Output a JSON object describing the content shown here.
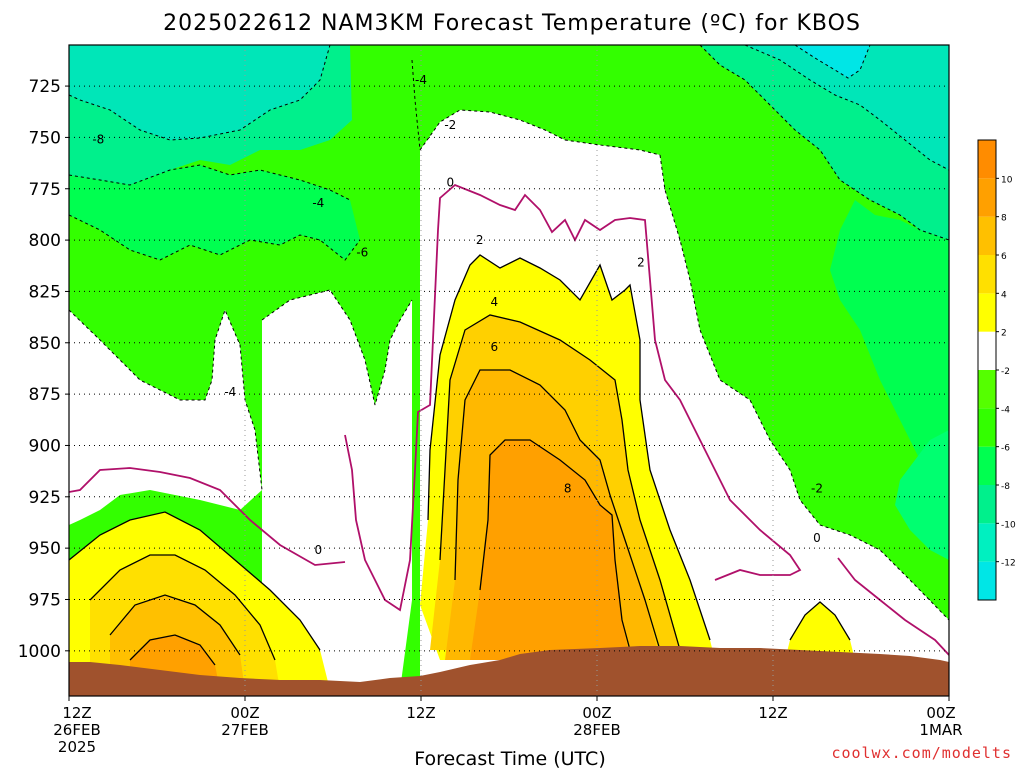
{
  "chart_data": {
    "type": "contour",
    "title": "2025022612 NAM3KM Forecast Temperature (ºC) for KBOS",
    "xlabel": "Forecast Time (UTC)",
    "ylabel": "",
    "y_axis_scale": "inverted",
    "y_ticks": [
      725,
      750,
      775,
      800,
      825,
      850,
      875,
      900,
      925,
      950,
      975,
      1000
    ],
    "x_ticks": [
      {
        "hour": 0,
        "lines": [
          "12Z",
          "26FEB",
          "2025"
        ]
      },
      {
        "hour": 12,
        "lines": [
          "00Z",
          "27FEB"
        ]
      },
      {
        "hour": 24,
        "lines": [
          "12Z"
        ]
      },
      {
        "hour": 36,
        "lines": [
          "00Z",
          "28FEB"
        ]
      },
      {
        "hour": 48,
        "lines": [
          "12Z"
        ]
      },
      {
        "hour": 60,
        "lines": [
          "00Z",
          "1MAR"
        ]
      }
    ],
    "x_range_hours": [
      0,
      60
    ],
    "y_range_hpa": [
      705,
      1022
    ],
    "grid": true,
    "contour_interval": 2,
    "contour_labels": [
      {
        "text": "-8",
        "hour": 2.0,
        "hpa": 752
      },
      {
        "text": "-4",
        "hour": 24.0,
        "hpa": 723
      },
      {
        "text": "-2",
        "hour": 26.0,
        "hpa": 745
      },
      {
        "text": "-4",
        "hour": 17.0,
        "hpa": 783
      },
      {
        "text": "-6",
        "hour": 20.0,
        "hpa": 807
      },
      {
        "text": "-4",
        "hour": 11.0,
        "hpa": 875
      },
      {
        "text": "0",
        "hour": 26.0,
        "hpa": 773
      },
      {
        "text": "2",
        "hour": 28.0,
        "hpa": 801
      },
      {
        "text": "2",
        "hour": 39.0,
        "hpa": 812
      },
      {
        "text": "4",
        "hour": 29.0,
        "hpa": 831
      },
      {
        "text": "6",
        "hour": 29.0,
        "hpa": 853
      },
      {
        "text": "8",
        "hour": 34.0,
        "hpa": 922
      },
      {
        "text": "0",
        "hour": 17.0,
        "hpa": 952
      },
      {
        "text": "-2",
        "hour": 51.0,
        "hpa": 922
      },
      {
        "text": "0",
        "hour": 51.0,
        "hpa": 946
      }
    ],
    "colorbar": {
      "levels": [
        -12,
        -10,
        -8,
        -6,
        -4,
        -2,
        2,
        4,
        6,
        8,
        10
      ],
      "colors": [
        "#00e6e6",
        "#00f0c0",
        "#00f08c",
        "#00ff50",
        "#33ff00",
        "#55ff00",
        "#ffffff",
        "#ffff00",
        "#ffe000",
        "#ffc000",
        "#ffa000",
        "#ff8c00"
      ]
    },
    "colors": {
      "terrain": "#a0522d",
      "zero_line": "#b0106a",
      "dashed_negative": "#000000"
    }
  },
  "credit": "coolwx.com/modelts"
}
